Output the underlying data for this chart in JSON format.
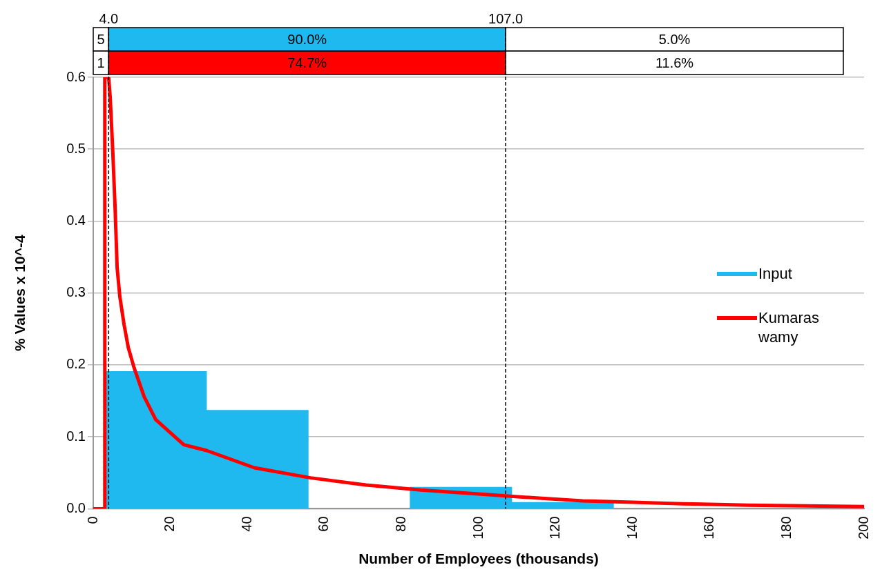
{
  "chart_data": {
    "type": "histogram",
    "xlabel": "Number of Employees (thousands)",
    "ylabel": "% Values x 10^-4",
    "xlim": [
      0,
      200
    ],
    "xticks": [
      0,
      20,
      40,
      60,
      80,
      100,
      120,
      140,
      160,
      180,
      200
    ],
    "ylim": [
      0,
      0.6
    ],
    "yticks": [
      {
        "value": 0,
        "label": "0.0"
      },
      0.1,
      0.2,
      0.3,
      0.4,
      0.5,
      0.6
    ],
    "series": [
      {
        "name": "Input",
        "color": "#1fb8ef",
        "bins": [
          3,
          29.4,
          55.8,
          82.2,
          108.6,
          135.0
        ],
        "values": [
          0.191,
          0.137,
          0,
          0.03,
          0.009
        ]
      },
      {
        "name": "Kumaraswamy",
        "type": "line",
        "color": "#ff0000",
        "x": [
          0,
          2.9,
          3.0,
          4.0,
          4.4,
          4.75,
          5.1,
          5.7,
          6.2,
          6.9,
          8.0,
          9.1,
          10.6,
          13.2,
          16.2,
          23.5,
          29.4,
          41.8,
          56.4,
          70.8,
          85,
          101.3,
          115,
          127,
          140,
          153,
          170,
          185,
          200
        ],
        "values": [
          0,
          0,
          0.6,
          0.6,
          0.572,
          0.533,
          0.493,
          0.414,
          0.335,
          0.295,
          0.256,
          0.224,
          0.196,
          0.156,
          0.124,
          0.089,
          0.081,
          0.057,
          0.043,
          0.033,
          0.026,
          0.02,
          0.015,
          0.011,
          0.009,
          0.007,
          0.005,
          0.004,
          0.003
        ]
      }
    ],
    "ref_lines": [
      {
        "axis": "x",
        "value": 4.0,
        "label": "4.0",
        "color": "#000000",
        "line_style": "dashed"
      },
      {
        "axis": "x",
        "value": 107.0,
        "label": "107.0",
        "color": "#000000",
        "line_style": "dashed"
      }
    ],
    "annotations": [
      "5",
      "90.0%",
      "5.0%",
      "1",
      "74.7%",
      "11.6%"
    ],
    "grid": "y",
    "legend": "right",
    "marker": "none",
    "line_style": "solid"
  }
}
